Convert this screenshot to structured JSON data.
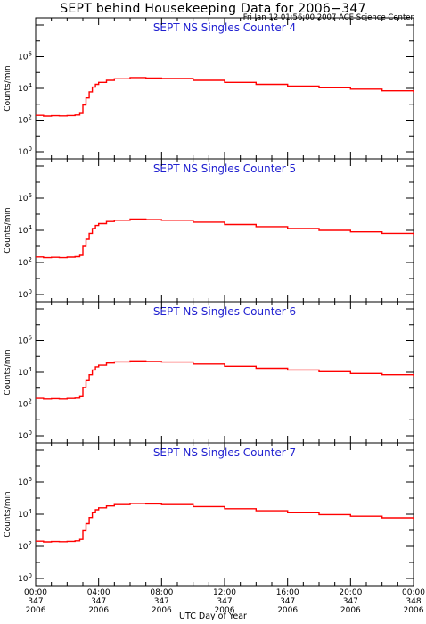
{
  "header": {
    "title": "SEPT behind Housekeeping Data for 2006−347",
    "timestamp": "Fri Jan 12 01:56:00 2007 ACE Science Center"
  },
  "colors": {
    "series": "#ff0000",
    "panel_title": "#1f1fd0",
    "axes": "#000000"
  },
  "x_axis": {
    "label": "UTC Day of Year",
    "ticks": [
      {
        "time": "00:00",
        "doy": "347",
        "year": "2006"
      },
      {
        "time": "04:00",
        "doy": "347",
        "year": "2006"
      },
      {
        "time": "08:00",
        "doy": "347",
        "year": "2006"
      },
      {
        "time": "12:00",
        "doy": "347",
        "year": "2006"
      },
      {
        "time": "16:00",
        "doy": "347",
        "year": "2006"
      },
      {
        "time": "20:00",
        "doy": "347",
        "year": "2006"
      },
      {
        "time": "00:00",
        "doy": "348",
        "year": "2006"
      }
    ]
  },
  "chart_data": [
    {
      "type": "line",
      "title": "SEPT NS Singles Counter 4",
      "ylabel": "Counts/min",
      "yscale": "log",
      "ylim": [
        1,
        100000000
      ],
      "ytick_labels": [
        "10^0",
        "10^2",
        "10^4",
        "10^6"
      ],
      "xlim": [
        0,
        24
      ],
      "xlabel": "UTC Day of Year",
      "series": [
        {
          "x": [
            0,
            0.5,
            1,
            1.5,
            2,
            2.5,
            2.8,
            3.0,
            3.2,
            3.4,
            3.6,
            3.8,
            4.0,
            4.5,
            5,
            6,
            7,
            8,
            10,
            12,
            14,
            16,
            18,
            20,
            22,
            24
          ],
          "y": [
            200,
            180,
            190,
            185,
            195,
            210,
            260,
            900,
            2500,
            6000,
            12000,
            18000,
            24000,
            32000,
            40000,
            48000,
            45000,
            42000,
            32000,
            24000,
            18000,
            14000,
            11000,
            9000,
            7000,
            5500
          ]
        }
      ]
    },
    {
      "type": "line",
      "title": "SEPT NS Singles Counter 5",
      "ylabel": "Counts/min",
      "yscale": "log",
      "ylim": [
        1,
        100000000
      ],
      "ytick_labels": [
        "10^0",
        "10^2",
        "10^4",
        "10^6"
      ],
      "xlim": [
        0,
        24
      ],
      "xlabel": "UTC Day of Year",
      "series": [
        {
          "x": [
            0,
            0.5,
            1,
            1.5,
            2,
            2.5,
            2.8,
            3.0,
            3.2,
            3.4,
            3.6,
            3.8,
            4.0,
            4.5,
            5,
            6,
            7,
            8,
            10,
            12,
            14,
            16,
            18,
            20,
            22,
            24
          ],
          "y": [
            220,
            200,
            210,
            200,
            215,
            230,
            280,
            1000,
            2800,
            6500,
            13000,
            20000,
            26000,
            35000,
            42000,
            50000,
            46000,
            42000,
            32000,
            23000,
            17000,
            13000,
            10000,
            8000,
            6500,
            5000
          ]
        }
      ]
    },
    {
      "type": "line",
      "title": "SEPT NS Singles Counter 6",
      "ylabel": "Counts/min",
      "yscale": "log",
      "ylim": [
        1,
        100000000
      ],
      "ytick_labels": [
        "10^0",
        "10^2",
        "10^4",
        "10^6"
      ],
      "xlim": [
        0,
        24
      ],
      "xlabel": "UTC Day of Year",
      "series": [
        {
          "x": [
            0,
            0.5,
            1,
            1.5,
            2,
            2.5,
            2.8,
            3.0,
            3.2,
            3.4,
            3.6,
            3.8,
            4.0,
            4.5,
            5,
            6,
            7,
            8,
            10,
            12,
            14,
            16,
            18,
            20,
            22,
            24
          ],
          "y": [
            230,
            210,
            220,
            210,
            225,
            240,
            290,
            1100,
            3000,
            7000,
            14000,
            22000,
            28000,
            38000,
            45000,
            52000,
            48000,
            44000,
            33000,
            24000,
            18000,
            14000,
            11000,
            8500,
            7000,
            5500
          ]
        }
      ]
    },
    {
      "type": "line",
      "title": "SEPT NS Singles Counter 7",
      "ylabel": "Counts/min",
      "yscale": "log",
      "ylim": [
        1,
        100000000
      ],
      "ytick_labels": [
        "10^0",
        "10^2",
        "10^4",
        "10^6"
      ],
      "xlim": [
        0,
        24
      ],
      "xlabel": "UTC Day of Year",
      "series": [
        {
          "x": [
            0,
            0.5,
            1,
            1.5,
            2,
            2.5,
            2.8,
            3.0,
            3.2,
            3.4,
            3.6,
            3.8,
            4.0,
            4.5,
            5,
            6,
            7,
            8,
            10,
            12,
            14,
            16,
            18,
            20,
            22,
            24
          ],
          "y": [
            210,
            190,
            200,
            195,
            205,
            220,
            270,
            950,
            2600,
            6200,
            12500,
            19000,
            25000,
            33000,
            40000,
            47000,
            44000,
            40000,
            30000,
            22000,
            16500,
            12500,
            9500,
            7500,
            6000,
            4800
          ]
        }
      ]
    }
  ]
}
